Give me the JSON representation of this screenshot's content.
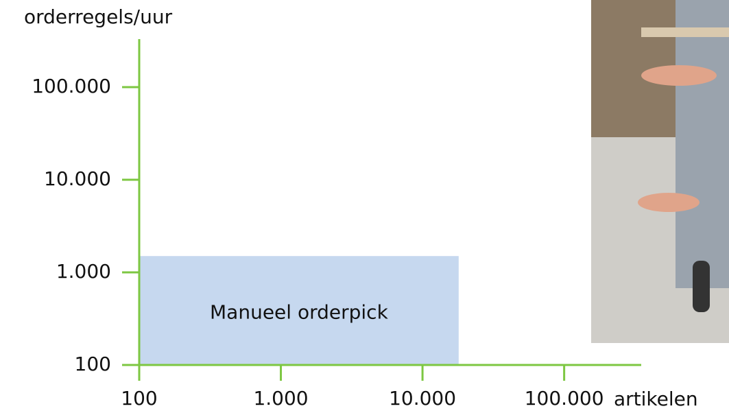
{
  "chart_data": {
    "type": "region",
    "x_label": "artikelen",
    "y_label": "orderregels/uur",
    "xscale": "log",
    "yscale": "log",
    "axis_color": "#7dc742",
    "xlim": [
      100,
      350000
    ],
    "ylim": [
      100,
      330000
    ],
    "xticks": [
      100,
      {
        "value": 1000,
        "label": "1.000"
      },
      {
        "value": 10000,
        "label": "10.000"
      },
      {
        "value": 100000,
        "label": "100.000"
      }
    ],
    "yticks": [
      100,
      {
        "value": 1000,
        "label": "1.000"
      },
      {
        "value": 10000,
        "label": "10.000"
      },
      {
        "value": 100000,
        "label": "100.000"
      }
    ],
    "regions": [
      {
        "label": "Manueel orderpick",
        "x": [
          100,
          18000
        ],
        "y": [
          100,
          1500
        ],
        "color": "#c6d8ef"
      }
    ]
  }
}
